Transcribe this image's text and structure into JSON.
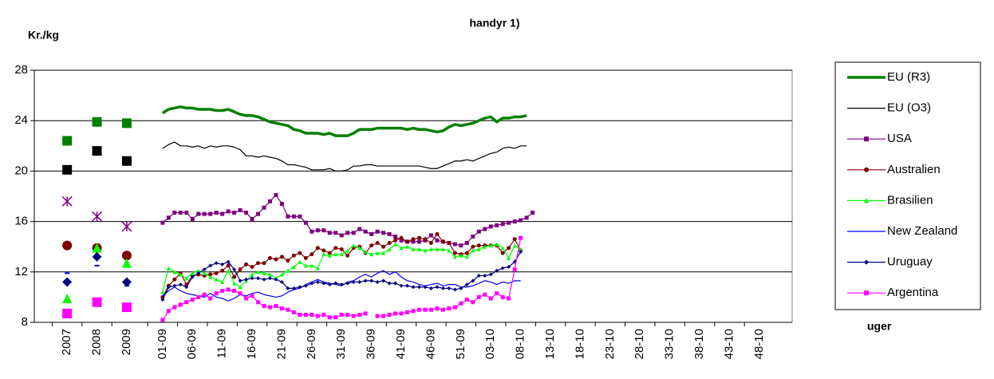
{
  "chart_data": {
    "type": "line",
    "title": "handyr 1)",
    "y_label": "Kr./kg",
    "x_label": "uger",
    "ylim": [
      8,
      28
    ],
    "yticks": [
      8,
      12,
      16,
      20,
      24,
      28
    ],
    "grid": true,
    "legend": "right",
    "categories": [
      null,
      null,
      null,
      null,
      null,
      "2007",
      null,
      null,
      null,
      null,
      "2008",
      null,
      null,
      null,
      null,
      "2009",
      null,
      null,
      null,
      null,
      null,
      "01-09",
      null,
      null,
      null,
      null,
      "06-09",
      null,
      null,
      null,
      null,
      "11-09",
      null,
      null,
      null,
      null,
      "16-09",
      null,
      null,
      null,
      null,
      "21-09",
      null,
      null,
      null,
      null,
      "26-09",
      null,
      null,
      null,
      null,
      "31-09",
      null,
      null,
      null,
      null,
      "36-09",
      null,
      null,
      null,
      null,
      "41-09",
      null,
      null,
      null,
      null,
      "46-09",
      null,
      null,
      null,
      null,
      "51-09",
      null,
      null,
      null,
      null,
      "03-10",
      null,
      null,
      null,
      null,
      "08-10",
      null,
      null,
      null,
      null,
      "13-10",
      null,
      null,
      null,
      null,
      "18-10",
      null,
      null,
      null,
      null,
      "23-10",
      null,
      null,
      null,
      null,
      "28-10",
      null,
      null,
      null,
      null,
      "33-10",
      null,
      null,
      null,
      null,
      "38-10",
      null,
      null,
      null,
      null,
      "43-10",
      null,
      null,
      null,
      null,
      "48-10",
      null,
      null,
      null,
      null,
      null
    ],
    "series": [
      {
        "name": "EU (R3)",
        "color": "#008000",
        "line_width": 3.5,
        "marker": "square",
        "values": [
          null,
          null,
          null,
          null,
          null,
          22.4,
          null,
          null,
          null,
          null,
          23.9,
          null,
          null,
          null,
          null,
          23.8,
          null,
          null,
          null,
          null,
          null,
          24.6,
          24.9,
          25.0,
          25.1,
          25.0,
          25.0,
          24.9,
          24.9,
          24.9,
          24.8,
          24.8,
          24.9,
          24.7,
          24.5,
          24.4,
          24.4,
          24.3,
          24.1,
          23.9,
          23.8,
          23.7,
          23.6,
          23.3,
          23.2,
          23.0,
          23.0,
          23.0,
          22.9,
          23.0,
          22.8,
          22.8,
          22.8,
          23.0,
          23.3,
          23.3,
          23.3,
          23.4,
          23.4,
          23.4,
          23.4,
          23.4,
          23.3,
          23.4,
          23.3,
          23.3,
          23.2,
          23.1,
          23.2,
          23.5,
          23.7,
          23.6,
          23.7,
          23.8,
          24.0,
          24.2,
          24.3,
          23.9,
          24.2,
          24.2,
          24.3,
          24.3,
          24.4,
          null,
          null,
          null,
          null,
          null,
          null,
          null,
          null,
          null,
          null,
          null,
          null,
          null,
          null,
          null,
          null,
          null,
          null,
          null,
          null,
          null,
          null,
          null,
          null,
          null,
          null,
          null,
          null,
          null,
          null,
          null,
          null,
          null,
          null,
          null,
          null,
          null,
          null,
          null,
          null,
          null,
          null,
          null,
          null
        ]
      },
      {
        "name": "EU (O3)",
        "color": "#000000",
        "line_width": 1.2,
        "marker": "square",
        "values": [
          null,
          null,
          null,
          null,
          null,
          20.1,
          null,
          null,
          null,
          null,
          21.6,
          null,
          null,
          null,
          null,
          20.8,
          null,
          null,
          null,
          null,
          null,
          21.8,
          22.1,
          22.3,
          22.0,
          22.0,
          21.9,
          22.0,
          21.8,
          22.0,
          21.9,
          22.0,
          22.0,
          21.9,
          21.7,
          21.2,
          21.2,
          21.1,
          21.2,
          21.1,
          21.0,
          20.8,
          20.5,
          20.5,
          20.4,
          20.3,
          20.1,
          20.1,
          20.1,
          20.2,
          20.0,
          20.0,
          20.1,
          20.4,
          20.4,
          20.5,
          20.5,
          20.4,
          20.4,
          20.4,
          20.4,
          20.4,
          20.4,
          20.4,
          20.4,
          20.3,
          20.2,
          20.2,
          20.4,
          20.6,
          20.8,
          20.8,
          20.9,
          20.8,
          21.0,
          21.2,
          21.4,
          21.5,
          21.8,
          21.9,
          21.8,
          22.0,
          22.0,
          null,
          null,
          null,
          null,
          null,
          null,
          null,
          null,
          null,
          null,
          null,
          null,
          null,
          null,
          null,
          null,
          null,
          null,
          null,
          null,
          null,
          null,
          null,
          null,
          null,
          null,
          null,
          null,
          null,
          null,
          null,
          null,
          null,
          null,
          null,
          null,
          null,
          null,
          null,
          null,
          null,
          null,
          null,
          null
        ]
      },
      {
        "name": "USA",
        "color": "#800080",
        "line_width": 1.2,
        "marker": "asterisk",
        "line_marker": "square",
        "values": [
          null,
          null,
          null,
          null,
          null,
          17.6,
          null,
          null,
          null,
          null,
          16.4,
          null,
          null,
          null,
          null,
          15.6,
          null,
          null,
          null,
          null,
          null,
          15.9,
          16.3,
          16.7,
          16.7,
          16.7,
          16.2,
          16.6,
          16.6,
          16.6,
          16.7,
          16.6,
          16.8,
          16.7,
          16.9,
          16.7,
          16.2,
          16.6,
          17.1,
          17.6,
          18.1,
          17.4,
          16.4,
          16.4,
          16.4,
          15.9,
          15.2,
          15.3,
          15.3,
          15.1,
          15.1,
          14.9,
          15.1,
          15.1,
          15.4,
          15.2,
          15.0,
          15.2,
          15.1,
          15.0,
          14.8,
          14.5,
          14.4,
          14.4,
          14.4,
          14.5,
          14.9,
          14.5,
          14.4,
          14.3,
          14.2,
          14.1,
          14.3,
          14.8,
          15.2,
          15.4,
          15.6,
          15.7,
          15.8,
          15.9,
          16.0,
          16.1,
          16.3,
          16.7,
          null,
          null,
          null,
          null,
          null,
          null,
          null,
          null,
          null,
          null,
          null,
          null,
          null,
          null,
          null,
          null,
          null,
          null,
          null,
          null,
          null,
          null,
          null,
          null,
          null,
          null,
          null,
          null,
          null,
          null,
          null,
          null,
          null,
          null,
          null,
          null,
          null,
          null,
          null,
          null,
          null,
          null,
          null
        ]
      },
      {
        "name": "Australien",
        "color": "#800000",
        "line_width": 1.2,
        "marker": "circle",
        "line_marker": "circle",
        "values": [
          null,
          null,
          null,
          null,
          null,
          14.1,
          null,
          null,
          null,
          null,
          13.9,
          null,
          null,
          null,
          null,
          13.3,
          null,
          null,
          null,
          null,
          null,
          10.0,
          10.9,
          11.4,
          11.9,
          11.0,
          11.7,
          11.8,
          11.7,
          11.8,
          11.9,
          12.1,
          12.5,
          11.6,
          12.2,
          12.6,
          12.4,
          12.7,
          12.7,
          13.1,
          13.0,
          13.2,
          12.9,
          13.3,
          13.5,
          13.1,
          13.4,
          13.9,
          13.7,
          13.5,
          13.9,
          13.8,
          13.3,
          13.9,
          14.0,
          13.5,
          14.1,
          14.3,
          14.0,
          14.3,
          14.5,
          14.7,
          14.4,
          14.6,
          14.7,
          14.6,
          14.3,
          15.0,
          14.4,
          14.3,
          13.5,
          13.4,
          13.5,
          14.0,
          14.1,
          14.1,
          14.1,
          14.1,
          13.5,
          13.9,
          14.6,
          13.7,
          null,
          null,
          null,
          null,
          null,
          null,
          null,
          null,
          null,
          null,
          null,
          null,
          null,
          null,
          null,
          null,
          null,
          null,
          null,
          null,
          null,
          null,
          null,
          null,
          null,
          null,
          null,
          null,
          null,
          null,
          null,
          null,
          null,
          null,
          null,
          null,
          null,
          null,
          null,
          null,
          null,
          null,
          null,
          null,
          null
        ]
      },
      {
        "name": "Brasilien",
        "color": "#00ff00",
        "line_width": 1.2,
        "marker": "triangle",
        "line_marker": "triangle",
        "values": [
          null,
          null,
          null,
          null,
          null,
          9.9,
          null,
          null,
          null,
          null,
          13.9,
          null,
          null,
          null,
          null,
          12.7,
          null,
          null,
          null,
          null,
          null,
          10.4,
          12.3,
          12.0,
          11.8,
          11.5,
          11.9,
          12.1,
          11.9,
          11.6,
          11.4,
          11.2,
          12.1,
          11.1,
          10.8,
          11.3,
          11.8,
          12.0,
          11.9,
          11.8,
          11.5,
          11.8,
          12.1,
          12.4,
          12.8,
          12.5,
          12.5,
          12.3,
          13.4,
          13.3,
          13.4,
          13.4,
          13.7,
          14.1,
          13.9,
          13.6,
          13.4,
          13.5,
          13.5,
          13.8,
          14.2,
          13.9,
          14.0,
          13.8,
          13.8,
          13.7,
          13.8,
          13.8,
          13.8,
          13.7,
          13.2,
          13.3,
          13.2,
          13.7,
          13.8,
          14.0,
          14.1,
          14.2,
          13.9,
          13.1,
          14.1,
          13.8,
          null,
          null,
          null,
          null,
          null,
          null,
          null,
          null,
          null,
          null,
          null,
          null,
          null,
          null,
          null,
          null,
          null,
          null,
          null,
          null,
          null,
          null,
          null,
          null,
          null,
          null,
          null,
          null,
          null,
          null,
          null,
          null,
          null,
          null,
          null,
          null,
          null,
          null,
          null,
          null,
          null,
          null,
          null,
          null,
          null
        ]
      },
      {
        "name": "New Zealand",
        "color": "#0000ff",
        "line_width": 1.2,
        "marker": "dash",
        "values": [
          null,
          null,
          null,
          null,
          null,
          11.9,
          null,
          null,
          null,
          null,
          12.5,
          null,
          null,
          null,
          null,
          10.9,
          null,
          null,
          null,
          null,
          null,
          10.1,
          10.5,
          10.8,
          10.5,
          10.3,
          10.2,
          10.1,
          10.0,
          10.3,
          10.0,
          9.9,
          9.7,
          9.9,
          10.2,
          10.1,
          10.3,
          10.4,
          10.2,
          10.1,
          10.0,
          10.1,
          10.4,
          10.6,
          10.7,
          11.0,
          11.2,
          11.4,
          11.2,
          11.1,
          11.0,
          10.9,
          11.2,
          11.3,
          11.6,
          11.8,
          11.6,
          11.9,
          12.1,
          11.8,
          12.0,
          11.6,
          11.3,
          11.2,
          11.0,
          10.9,
          11.0,
          11.1,
          10.9,
          11.0,
          11.0,
          10.8,
          10.8,
          10.9,
          11.1,
          11.3,
          11.2,
          11.0,
          11.2,
          11.1,
          11.3,
          11.3,
          null,
          null,
          null,
          null,
          null,
          null,
          null,
          null,
          null,
          null,
          null,
          null,
          null,
          null,
          null,
          null,
          null,
          null,
          null,
          null,
          null,
          null,
          null,
          null,
          null,
          null,
          null,
          null,
          null,
          null,
          null,
          null,
          null,
          null,
          null,
          null,
          null,
          null,
          null,
          null,
          null,
          null,
          null,
          null,
          null
        ]
      },
      {
        "name": "Uruguay",
        "color": "#000080",
        "line_width": 1.2,
        "marker": "diamond",
        "line_marker": "diamond",
        "values": [
          null,
          null,
          null,
          null,
          null,
          11.2,
          null,
          null,
          null,
          null,
          13.2,
          null,
          null,
          null,
          null,
          11.2,
          null,
          null,
          null,
          null,
          null,
          9.8,
          10.8,
          10.9,
          11.0,
          10.8,
          11.6,
          11.9,
          12.2,
          12.5,
          12.7,
          12.6,
          12.8,
          12.2,
          11.3,
          11.4,
          11.5,
          11.5,
          11.4,
          11.5,
          11.4,
          11.2,
          10.7,
          10.7,
          10.8,
          10.9,
          11.1,
          11.2,
          11.1,
          11.0,
          11.1,
          11.0,
          11.1,
          11.2,
          11.2,
          11.3,
          11.3,
          11.2,
          11.3,
          11.1,
          11.1,
          10.9,
          10.9,
          10.8,
          10.8,
          10.8,
          10.7,
          10.8,
          10.7,
          10.7,
          10.6,
          10.7,
          11.0,
          11.3,
          11.7,
          11.7,
          11.8,
          12.1,
          12.3,
          12.4,
          12.8,
          13.6,
          null,
          null,
          null,
          null,
          null,
          null,
          null,
          null,
          null,
          null,
          null,
          null,
          null,
          null,
          null,
          null,
          null,
          null,
          null,
          null,
          null,
          null,
          null,
          null,
          null,
          null,
          null,
          null,
          null,
          null,
          null,
          null,
          null,
          null,
          null,
          null,
          null,
          null,
          null,
          null,
          null,
          null,
          null,
          null,
          null
        ]
      },
      {
        "name": "Argentina",
        "color": "#ff00ff",
        "line_width": 1.2,
        "marker": "square",
        "line_marker": "square",
        "values": [
          null,
          null,
          null,
          null,
          null,
          8.7,
          null,
          null,
          null,
          null,
          9.6,
          null,
          null,
          null,
          null,
          9.2,
          null,
          null,
          null,
          null,
          null,
          8.2,
          8.9,
          9.2,
          9.4,
          9.6,
          9.8,
          10.0,
          10.2,
          9.9,
          10.3,
          10.5,
          10.6,
          10.5,
          10.3,
          9.9,
          10.1,
          9.6,
          9.3,
          9.2,
          9.3,
          9.1,
          9.0,
          8.8,
          8.6,
          8.6,
          8.6,
          8.5,
          8.6,
          8.4,
          8.4,
          8.6,
          8.6,
          8.5,
          8.6,
          8.7,
          null,
          8.5,
          8.5,
          8.6,
          8.7,
          8.7,
          8.8,
          8.9,
          9.0,
          9.0,
          9.0,
          9.1,
          9.0,
          9.1,
          9.2,
          9.5,
          9.8,
          9.6,
          10.0,
          10.2,
          9.9,
          10.3,
          10.0,
          9.9,
          12.2,
          14.7,
          null,
          null,
          null,
          null,
          null,
          null,
          null,
          null,
          null,
          null,
          null,
          null,
          null,
          null,
          null,
          null,
          null,
          null,
          null,
          null,
          null,
          null,
          null,
          null,
          null,
          null,
          null,
          null,
          null,
          null,
          null,
          null,
          null,
          null,
          null,
          null,
          null,
          null,
          null,
          null,
          null,
          null,
          null,
          null,
          null
        ]
      }
    ]
  }
}
